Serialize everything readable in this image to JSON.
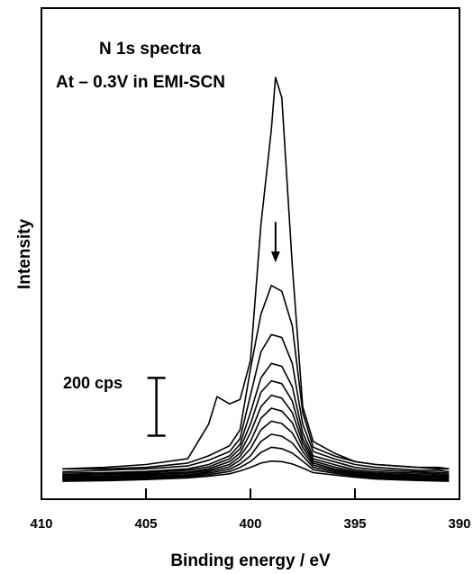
{
  "chart_data": {
    "type": "line",
    "title_lines": [
      "N 1s spectra",
      "At – 0.3V in EMI-SCN"
    ],
    "xlabel": "Binding energy / eV",
    "ylabel": "Intensity",
    "x_reversed": true,
    "xlim": [
      410,
      390
    ],
    "ylim": [
      0,
      1700
    ],
    "x_ticks": [
      410,
      405,
      400,
      395,
      390
    ],
    "x_tick_labels": [
      "410",
      "405",
      "400",
      "395",
      "390"
    ],
    "grid": false,
    "scale_bar": {
      "label": "200 cps",
      "value": 200,
      "x": 404.5,
      "y_bottom": 220
    },
    "annotation": {
      "type": "arrow-down",
      "x": 398.8,
      "y_from": 960,
      "y_to": 820
    },
    "series": [
      {
        "x": [
          409,
          407,
          405,
          403,
          402.5,
          402,
          401.6,
          401,
          400.5,
          400,
          399.5,
          399,
          398.8,
          398.5,
          398,
          397.5,
          397,
          396,
          395,
          394,
          393,
          392,
          391,
          390.5
        ],
        "y": [
          105,
          110,
          120,
          140,
          200,
          260,
          355,
          330,
          345,
          480,
          950,
          1280,
          1460,
          1390,
          810,
          320,
          200,
          160,
          130,
          120,
          115,
          110,
          105,
          105
        ]
      },
      {
        "x": [
          409,
          407,
          405,
          403,
          402,
          401,
          400.5,
          400,
          399.5,
          399,
          398.5,
          398,
          397.5,
          397,
          396,
          395,
          394,
          393,
          392,
          391,
          390.5
        ],
        "y": [
          105,
          105,
          110,
          125,
          150,
          185,
          240,
          450,
          640,
          740,
          720,
          600,
          300,
          180,
          150,
          130,
          120,
          115,
          110,
          110,
          105
        ]
      },
      {
        "x": [
          409,
          407,
          405,
          403,
          402,
          401,
          400.5,
          400,
          399.5,
          399,
          398.5,
          398,
          397.5,
          397,
          396,
          395,
          394,
          393,
          392,
          391,
          390.5
        ],
        "y": [
          95,
          100,
          105,
          115,
          135,
          165,
          210,
          360,
          510,
          570,
          560,
          470,
          260,
          165,
          140,
          120,
          110,
          105,
          100,
          100,
          95
        ]
      },
      {
        "x": [
          409,
          407,
          405,
          403,
          402,
          401,
          400.5,
          400,
          399.5,
          399,
          398.5,
          398,
          397.5,
          397,
          396,
          395,
          394,
          393,
          392,
          391,
          390.5
        ],
        "y": [
          90,
          92,
          96,
          105,
          120,
          150,
          190,
          300,
          420,
          470,
          460,
          390,
          230,
          150,
          130,
          110,
          102,
          98,
          95,
          93,
          90
        ]
      },
      {
        "x": [
          409,
          407,
          405,
          403,
          402,
          401,
          400.5,
          400,
          399.5,
          399,
          398.5,
          398,
          397.5,
          397,
          396,
          395,
          394,
          393,
          392,
          391,
          390.5
        ],
        "y": [
          85,
          88,
          92,
          100,
          112,
          140,
          175,
          260,
          370,
          410,
          400,
          340,
          210,
          140,
          120,
          102,
          95,
          92,
          90,
          88,
          85
        ]
      },
      {
        "x": [
          409,
          407,
          405,
          403,
          402,
          401,
          400.5,
          400,
          399.5,
          399,
          398.5,
          398,
          397.5,
          397,
          396,
          395,
          394,
          393,
          392,
          391,
          390.5
        ],
        "y": [
          82,
          85,
          88,
          94,
          105,
          130,
          160,
          230,
          320,
          360,
          350,
          300,
          195,
          132,
          112,
          96,
          90,
          87,
          85,
          83,
          82
        ]
      },
      {
        "x": [
          409,
          407,
          405,
          403,
          402,
          401,
          400.5,
          400,
          399.5,
          399,
          398.5,
          398,
          397.5,
          397,
          396,
          395,
          394,
          393,
          392,
          391,
          390.5
        ],
        "y": [
          78,
          80,
          84,
          90,
          100,
          120,
          148,
          200,
          280,
          315,
          305,
          265,
          180,
          125,
          105,
          92,
          86,
          83,
          81,
          79,
          78
        ]
      },
      {
        "x": [
          409,
          407,
          405,
          403,
          402,
          401,
          400.5,
          400,
          399.5,
          399,
          398.5,
          398,
          397.5,
          397,
          396,
          395,
          394,
          393,
          392,
          391,
          390.5
        ],
        "y": [
          74,
          76,
          80,
          85,
          95,
          112,
          135,
          175,
          240,
          270,
          262,
          230,
          165,
          118,
          100,
          88,
          82,
          79,
          77,
          75,
          74
        ]
      },
      {
        "x": [
          409,
          407,
          405,
          403,
          402,
          401,
          400.5,
          400,
          399.5,
          399,
          398.5,
          398,
          397.5,
          397,
          396,
          395,
          394,
          393,
          392,
          391,
          390.5
        ],
        "y": [
          70,
          72,
          76,
          82,
          90,
          104,
          122,
          150,
          200,
          225,
          218,
          195,
          150,
          110,
          95,
          84,
          78,
          75,
          73,
          71,
          70
        ]
      },
      {
        "x": [
          409,
          407,
          405,
          403,
          402,
          401,
          400.5,
          400,
          399.5,
          399,
          398.5,
          398,
          397.5,
          397,
          396,
          395,
          394,
          393,
          392,
          391,
          390.5
        ],
        "y": [
          66,
          68,
          72,
          78,
          85,
          96,
          110,
          130,
          162,
          180,
          175,
          160,
          132,
          102,
          90,
          80,
          74,
          71,
          69,
          67,
          66
        ]
      },
      {
        "x": [
          409,
          407,
          405,
          403,
          402,
          401,
          400.5,
          400,
          399.5,
          399,
          398.5,
          398,
          397.5,
          397,
          396,
          395,
          394,
          393,
          392,
          391,
          390.5
        ],
        "y": [
          62,
          64,
          68,
          74,
          80,
          88,
          98,
          110,
          125,
          132,
          130,
          122,
          108,
          92,
          84,
          76,
          70,
          67,
          65,
          63,
          62
        ]
      }
    ]
  }
}
